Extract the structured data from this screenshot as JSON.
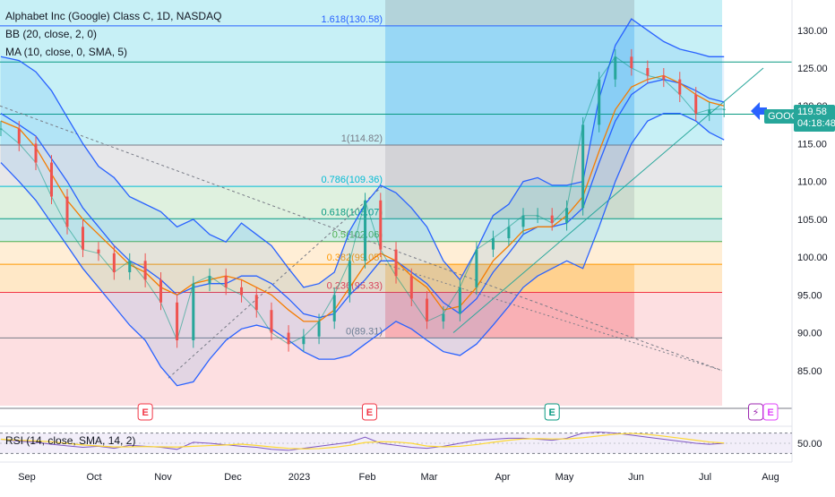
{
  "chart_data": {
    "type": "line",
    "title": "Alphabet Inc (Google) Class C, 1D, NASDAQ",
    "indicators": [
      "BB (20, close, 2, 0)",
      "MA (10, close, 0, SMA, 5)"
    ],
    "symbol": "GOOG",
    "last_price": "119.58",
    "countdown": "04:18:48",
    "price_axis": {
      "ylim": [
        80,
        134
      ],
      "ticks": [
        "130.00",
        "125.00",
        "120.00",
        "115.00",
        "110.00",
        "105.00",
        "100.00",
        "95.00",
        "90.00",
        "85.00"
      ]
    },
    "x_ticks": [
      "Sep",
      "Oct",
      "Nov",
      "Dec",
      "2023",
      "Feb",
      "Mar",
      "Apr",
      "May",
      "Jun",
      "Jul",
      "Aug"
    ],
    "fib_levels": [
      {
        "label": "1.618(130.58)",
        "price": 130.58,
        "color": "#2962ff"
      },
      {
        "label": "1(114.82)",
        "price": 114.82,
        "color": "#787b86"
      },
      {
        "label": "0.786(109.36)",
        "price": 109.36,
        "color": "#00bcd4"
      },
      {
        "label": "0.618(105.07)",
        "price": 105.07,
        "color": "#089981"
      },
      {
        "label": "0.5(102.06)",
        "price": 102.06,
        "color": "#4caf50"
      },
      {
        "label": "0.382(99.05)",
        "price": 99.05,
        "color": "#ff9800"
      },
      {
        "label": "0.236(95.33)",
        "price": 95.33,
        "color": "#f23645"
      },
      {
        "label": "0(89.31)",
        "price": 89.31,
        "color": "#787b86"
      }
    ],
    "series": [
      {
        "name": "BB upper",
        "color": "#2962ff",
        "dates": [
          "Aug 22",
          "Aug 29",
          "Sep 5",
          "Sep 12",
          "Sep 19",
          "Sep 26",
          "Oct 3",
          "Oct 10",
          "Oct 17",
          "Oct 24",
          "Oct 31",
          "Nov 7",
          "Nov 14",
          "Nov 21",
          "Nov 28",
          "Dec 5",
          "Dec 12",
          "Dec 19",
          "Dec 27",
          "Jan 3",
          "Jan 10",
          "Jan 17",
          "Jan 24",
          "Jan 31",
          "Feb 7",
          "Feb 14",
          "Feb 21",
          "Feb 28",
          "Mar 7",
          "Mar 14",
          "Mar 21",
          "Mar 28",
          "Apr 4",
          "Apr 11",
          "Apr 18",
          "Apr 25",
          "May 2",
          "May 9",
          "May 16",
          "May 23",
          "May 30",
          "Jun 6",
          "Jun 13",
          "Jun 20",
          "Jun 27",
          "Jul 3",
          "Jul 10"
        ],
        "values": [
          126.5,
          126.0,
          124.5,
          122.0,
          118.5,
          115.0,
          112.0,
          110.5,
          108.0,
          107.0,
          106.0,
          104.0,
          105.0,
          103.0,
          102.0,
          104.5,
          103.0,
          101.5,
          98.5,
          96.0,
          96.5,
          98.0,
          103.5,
          107.0,
          109.5,
          108.5,
          106.5,
          104.0,
          99.5,
          97.0,
          101.0,
          105.5,
          107.0,
          110.0,
          110.5,
          109.5,
          109.5,
          110.0,
          121.0,
          128.0,
          131.5,
          130.0,
          128.5,
          127.5,
          127.0,
          126.5,
          126.5
        ]
      },
      {
        "name": "BB middle",
        "color": "#2962ff",
        "dates": [
          "Aug 22",
          "Aug 29",
          "Sep 5",
          "Sep 12",
          "Sep 19",
          "Sep 26",
          "Oct 3",
          "Oct 10",
          "Oct 17",
          "Oct 24",
          "Oct 31",
          "Nov 7",
          "Nov 14",
          "Nov 21",
          "Nov 28",
          "Dec 5",
          "Dec 12",
          "Dec 19",
          "Dec 27",
          "Jan 3",
          "Jan 10",
          "Jan 17",
          "Jan 24",
          "Jan 31",
          "Feb 7",
          "Feb 14",
          "Feb 21",
          "Feb 28",
          "Mar 7",
          "Mar 14",
          "Mar 21",
          "Mar 28",
          "Apr 4",
          "Apr 11",
          "Apr 18",
          "Apr 25",
          "May 2",
          "May 9",
          "May 16",
          "May 23",
          "May 30",
          "Jun 6",
          "Jun 13",
          "Jun 20",
          "Jun 27",
          "Jul 3",
          "Jul 10"
        ],
        "values": [
          119.0,
          117.5,
          116.0,
          113.0,
          110.0,
          106.5,
          104.0,
          101.5,
          99.5,
          98.5,
          97.0,
          95.0,
          96.0,
          96.5,
          96.5,
          97.5,
          97.5,
          96.5,
          94.5,
          92.5,
          92.0,
          92.5,
          95.0,
          97.0,
          99.5,
          99.5,
          98.0,
          96.5,
          94.0,
          92.5,
          94.5,
          98.0,
          100.5,
          103.0,
          104.0,
          104.0,
          104.5,
          106.5,
          112.5,
          118.0,
          121.5,
          123.0,
          123.5,
          123.0,
          122.0,
          121.0,
          120.5
        ]
      },
      {
        "name": "BB lower",
        "color": "#2962ff",
        "dates": [
          "Aug 22",
          "Aug 29",
          "Sep 5",
          "Sep 12",
          "Sep 19",
          "Sep 26",
          "Oct 3",
          "Oct 10",
          "Oct 17",
          "Oct 24",
          "Oct 31",
          "Nov 7",
          "Nov 14",
          "Nov 21",
          "Nov 28",
          "Dec 5",
          "Dec 12",
          "Dec 19",
          "Dec 27",
          "Jan 3",
          "Jan 10",
          "Jan 17",
          "Jan 24",
          "Jan 31",
          "Feb 7",
          "Feb 14",
          "Feb 21",
          "Feb 28",
          "Mar 7",
          "Mar 14",
          "Mar 21",
          "Mar 28",
          "Apr 4",
          "Apr 11",
          "Apr 18",
          "Apr 25",
          "May 2",
          "May 9",
          "May 16",
          "May 23",
          "May 30",
          "Jun 6",
          "Jun 13",
          "Jun 20",
          "Jun 27",
          "Jul 3",
          "Jul 10"
        ],
        "values": [
          112.5,
          110.0,
          107.5,
          104.5,
          101.5,
          98.5,
          96.0,
          93.5,
          91.0,
          89.0,
          85.5,
          83.0,
          83.5,
          86.5,
          89.0,
          90.5,
          91.0,
          90.5,
          89.0,
          87.5,
          86.5,
          86.5,
          87.0,
          88.5,
          90.0,
          91.5,
          90.5,
          89.0,
          87.5,
          87.0,
          88.5,
          91.0,
          93.5,
          96.0,
          97.5,
          98.5,
          99.5,
          98.5,
          104.0,
          110.0,
          115.0,
          118.0,
          119.0,
          119.0,
          118.0,
          116.5,
          115.5
        ]
      },
      {
        "name": "MA",
        "color": "#f57c00",
        "dates": [
          "Aug 22",
          "Aug 29",
          "Sep 5",
          "Sep 12",
          "Sep 19",
          "Sep 26",
          "Oct 3",
          "Oct 10",
          "Oct 17",
          "Oct 24",
          "Oct 31",
          "Nov 7",
          "Nov 14",
          "Nov 21",
          "Nov 28",
          "Dec 5",
          "Dec 12",
          "Dec 19",
          "Dec 27",
          "Jan 3",
          "Jan 10",
          "Jan 17",
          "Jan 24",
          "Jan 31",
          "Feb 7",
          "Feb 14",
          "Feb 21",
          "Feb 28",
          "Mar 7",
          "Mar 14",
          "Mar 21",
          "Mar 28",
          "Apr 4",
          "Apr 11",
          "Apr 18",
          "Apr 25",
          "May 2",
          "May 9",
          "May 16",
          "May 23",
          "May 30",
          "Jun 6",
          "Jun 13",
          "Jun 20",
          "Jun 27",
          "Jul 3",
          "Jul 10"
        ],
        "values": [
          118.0,
          117.0,
          114.5,
          111.0,
          107.5,
          105.0,
          103.0,
          101.0,
          99.0,
          98.0,
          96.0,
          95.0,
          96.5,
          97.0,
          97.5,
          97.0,
          96.0,
          95.0,
          93.0,
          91.5,
          91.5,
          93.0,
          96.0,
          99.0,
          100.5,
          99.5,
          97.5,
          96.0,
          93.0,
          93.5,
          96.0,
          99.5,
          101.5,
          103.5,
          104.0,
          104.0,
          105.5,
          108.0,
          114.0,
          119.5,
          122.5,
          123.5,
          124.0,
          123.0,
          121.5,
          120.5,
          120.0
        ]
      },
      {
        "name": "Close",
        "color": "#089981",
        "dates": [
          "Aug 22",
          "Aug 29",
          "Sep 5",
          "Sep 12",
          "Sep 19",
          "Sep 26",
          "Oct 3",
          "Oct 10",
          "Oct 17",
          "Oct 24",
          "Oct 31",
          "Nov 7",
          "Nov 14",
          "Nov 21",
          "Nov 28",
          "Dec 5",
          "Dec 12",
          "Dec 19",
          "Dec 27",
          "Jan 3",
          "Jan 10",
          "Jan 17",
          "Jan 24",
          "Jan 31",
          "Feb 7",
          "Feb 14",
          "Feb 21",
          "Feb 28",
          "Mar 7",
          "Mar 14",
          "Mar 21",
          "Mar 28",
          "Apr 4",
          "Apr 11",
          "Apr 18",
          "Apr 25",
          "May 2",
          "May 9",
          "May 16",
          "May 23",
          "May 30",
          "Jun 6",
          "Jun 13",
          "Jun 20",
          "Jun 27",
          "Jul 3",
          "Jul 10"
        ],
        "values": [
          117.0,
          115.0,
          112.5,
          108.0,
          104.0,
          101.0,
          100.5,
          98.0,
          99.5,
          97.0,
          94.0,
          89.0,
          96.5,
          97.5,
          96.0,
          95.0,
          93.0,
          90.0,
          88.5,
          89.5,
          91.5,
          95.0,
          99.5,
          107.5,
          101.0,
          97.5,
          94.5,
          91.5,
          92.5,
          96.0,
          101.0,
          102.5,
          104.0,
          105.5,
          105.5,
          104.5,
          106.5,
          117.5,
          123.5,
          126.5,
          125.0,
          124.0,
          123.5,
          121.5,
          119.0,
          119.5,
          119.58
        ]
      }
    ],
    "rsi": {
      "label": "RSI (14, close, SMA, 14, 2)",
      "ylim": [
        20,
        80
      ],
      "tick": "50.00",
      "values": [
        58,
        54,
        52,
        48,
        45,
        42,
        44,
        40,
        46,
        44,
        42,
        38,
        52,
        50,
        47,
        44,
        42,
        38,
        36,
        40,
        44,
        48,
        52,
        62,
        50,
        46,
        42,
        40,
        44,
        50,
        56,
        58,
        60,
        60,
        58,
        56,
        60,
        70,
        72,
        70,
        66,
        62,
        58,
        54,
        50,
        48,
        50
      ]
    },
    "markers": [
      {
        "date": "Oct 24",
        "letter": "E",
        "color": "#f23645"
      },
      {
        "date": "Feb 2",
        "letter": "E",
        "color": "#f23645"
      },
      {
        "date": "Apr 25",
        "letter": "E",
        "color": "#089981"
      },
      {
        "date": "Jul 25",
        "letter": "⚡",
        "color": "#9c27b0"
      },
      {
        "date": "Aug 1",
        "letter": "E",
        "color": "#e040fb"
      }
    ]
  }
}
